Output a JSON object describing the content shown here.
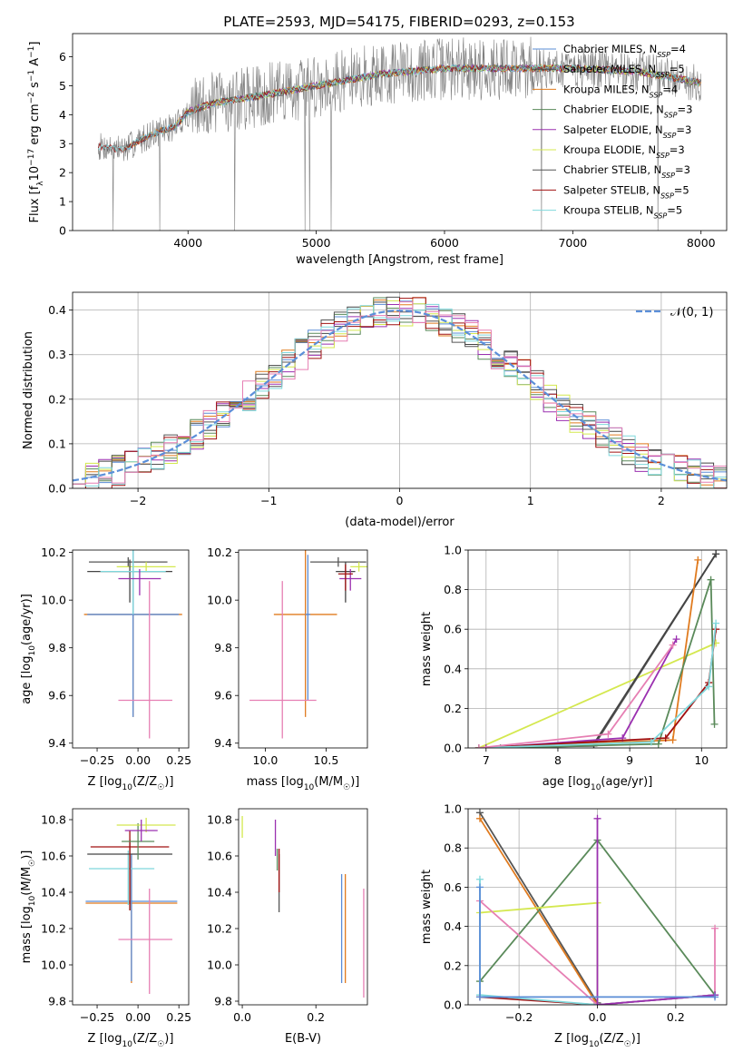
{
  "title": "PLATE=2593, MJD=54175, FIBERID=0293, z=0.153",
  "colors": {
    "Chabrier MILES": "#5a8cd6",
    "Salpeter MILES": "#444444",
    "Kroupa MILES": "#e07b1f",
    "Chabrier ELODIE": "#5a8a5a",
    "Salpeter ELODIE": "#9b30b0",
    "Kroupa ELODIE": "#d4e84f",
    "Chabrier STELIB": "#555555",
    "Salpeter STELIB": "#a01010",
    "Kroupa STELIB": "#7fd8dc",
    "pink": "#e67fb3",
    "data": "#808080",
    "normal": "#5b8fd9"
  },
  "chart_data": [
    {
      "type": "line",
      "panel": "spectrum",
      "xlabel": "wavelength [Angstrom, rest frame]",
      "ylabel_parts": [
        "Flux [f",
        "λ",
        "10",
        "−17",
        " erg cm",
        "−2",
        " s",
        "−1",
        " A",
        "−1",
        "]"
      ],
      "xlim": [
        3100,
        8200
      ],
      "ylim": [
        0,
        6.8
      ],
      "xticks": [
        4000,
        5000,
        6000,
        7000,
        8000
      ],
      "yticks": [
        0,
        1,
        2,
        3,
        4,
        5,
        6
      ],
      "legend_placement": "right",
      "legend": [
        {
          "label": "Chabrier MILES, N",
          "sub": "SSP",
          "tail": "=4"
        },
        {
          "label": "Salpeter MILES, N",
          "sub": "SSP",
          "tail": "=5"
        },
        {
          "label": "Kroupa MILES, N",
          "sub": "SSP",
          "tail": "=4"
        },
        {
          "label": "Chabrier ELODIE, N",
          "sub": "SSP",
          "tail": "=3"
        },
        {
          "label": "Salpeter ELODIE, N",
          "sub": "SSP",
          "tail": "=3"
        },
        {
          "label": "Kroupa ELODIE, N",
          "sub": "SSP",
          "tail": "=3"
        },
        {
          "label": "Chabrier STELIB, N",
          "sub": "SSP",
          "tail": "=3"
        },
        {
          "label": "Salpeter STELIB, N",
          "sub": "SSP",
          "tail": "=5"
        },
        {
          "label": "Kroupa STELIB, N",
          "sub": "SSP",
          "tail": "=5"
        }
      ],
      "continuum": {
        "x": [
          3300,
          3500,
          3700,
          3900,
          4000,
          4200,
          4500,
          5000,
          5500,
          6000,
          6500,
          7000,
          7500,
          8000
        ],
        "y": [
          2.9,
          2.8,
          3.3,
          3.6,
          4.1,
          4.4,
          4.6,
          5.0,
          5.4,
          5.6,
          5.6,
          5.6,
          5.5,
          5.1
        ]
      }
    },
    {
      "type": "line",
      "panel": "residual-histogram",
      "xlabel": "(data-model)/error",
      "ylabel": "Normed distribution",
      "xlim": [
        -2.5,
        2.5
      ],
      "ylim": [
        0,
        0.44
      ],
      "xticks": [
        -2,
        -1,
        0,
        1,
        2
      ],
      "xticklabels": [
        "−2",
        "−1",
        "0",
        "1",
        "2"
      ],
      "yticks": [
        0,
        0.1,
        0.2,
        0.3,
        0.4
      ],
      "yticklabels": [
        "0.0",
        "0.1",
        "0.2",
        "0.3",
        "0.4"
      ],
      "legend_label": "𝒩(0, 1)",
      "grid": true,
      "bin_width": 0.1
    },
    {
      "type": "scatter",
      "panel": "age-vs-Z",
      "xlabel_parts": [
        "Z [log",
        "10",
        "(Z/Z",
        "☉",
        ")]"
      ],
      "ylabel_parts": [
        "age  [log",
        "10",
        "(age/yr)]"
      ],
      "xlim": [
        -0.4,
        0.31
      ],
      "ylim": [
        9.38,
        10.21
      ],
      "xticks": [
        -0.25,
        0,
        0.25
      ],
      "xticklabels": [
        "−0.25",
        "0.00",
        "0.25"
      ],
      "yticks": [
        9.4,
        9.6,
        9.8,
        10.0,
        10.2
      ],
      "yticklabels": [
        "9.4",
        "9.6",
        "9.8",
        "10.0",
        "10.2"
      ],
      "points": [
        {
          "c": "Kroupa MILES",
          "x": -0.03,
          "xe": 0.3,
          "y": 9.94,
          "ye": [
            0.43,
            0.27
          ]
        },
        {
          "c": "Chabrier MILES",
          "x": -0.03,
          "xe": 0.28,
          "y": 9.94,
          "ye": [
            0.43,
            0.27
          ]
        },
        {
          "c": "pink",
          "x": 0.07,
          "xe": [
            0.19,
            0.14
          ],
          "y": 9.58,
          "ye": [
            0.16,
            0.5
          ]
        },
        {
          "c": "Chabrier STELIB",
          "x": -0.06,
          "xe": 0.24,
          "y": 10.16,
          "ye": 0.02
        },
        {
          "c": "Kroupa ELODIE",
          "x": 0.05,
          "xe": 0.18,
          "y": 10.14,
          "ye": [
            0.02,
            0.02
          ]
        },
        {
          "c": "Salpeter MILES",
          "x": -0.05,
          "xe": 0.26,
          "y": 10.12,
          "ye": [
            0.13,
            0.05
          ]
        },
        {
          "c": "Kroupa STELIB",
          "x": -0.03,
          "xe": 0.2,
          "y": 10.12,
          "ye": 0.18
        },
        {
          "c": "Salpeter ELODIE",
          "x": 0.01,
          "xe": 0.13,
          "y": 10.09,
          "ye": [
            0.07,
            0.04
          ]
        }
      ]
    },
    {
      "type": "scatter",
      "panel": "age-vs-mass",
      "xlabel_parts": [
        "mass [log",
        "10",
        "(M/M",
        "☉",
        ")]"
      ],
      "ylabel": "",
      "xlim": [
        9.78,
        10.84
      ],
      "ylim": [
        9.38,
        10.21
      ],
      "xticks": [
        10.0,
        10.5
      ],
      "xticklabels": [
        "10.0",
        "10.5"
      ],
      "yticks": [
        9.4,
        9.6,
        9.8,
        10.0,
        10.2
      ],
      "yticklabels": [
        "9.4",
        "9.6",
        "9.8",
        "10.0",
        "10.2"
      ],
      "points": [
        {
          "c": "Kroupa MILES",
          "x": 10.33,
          "xe": 0.26,
          "y": 9.94,
          "ye": [
            0.43,
            0.27
          ]
        },
        {
          "c": "Chabrier MILES",
          "x": 10.35,
          "xe": 0.02,
          "y": 9.94,
          "ye": [
            0.36,
            0.25
          ]
        },
        {
          "c": "pink",
          "x": 10.14,
          "xe": [
            0.27,
            0.28
          ],
          "y": 9.58,
          "ye": [
            0.16,
            0.5
          ]
        },
        {
          "c": "Chabrier STELIB",
          "x": 10.6,
          "xe": 0.23,
          "y": 10.16,
          "ye": 0.02
        },
        {
          "c": "Kroupa ELODIE",
          "x": 10.77,
          "xe": 0.07,
          "y": 10.14,
          "ye": 0.02
        },
        {
          "c": "Salpeter MILES",
          "x": 10.66,
          "xe": 0.08,
          "y": 10.12,
          "ye": [
            0.13,
            0.04
          ]
        },
        {
          "c": "Salpeter ELODIE",
          "x": 10.7,
          "xe": 0.09,
          "y": 10.09,
          "ye": [
            0.05,
            0.04
          ]
        },
        {
          "c": "Salpeter STELIB",
          "x": 10.66,
          "xe": 0.06,
          "y": 10.11,
          "ye": [
            0.07,
            0.04
          ]
        }
      ]
    },
    {
      "type": "line",
      "panel": "mass-weight-vs-age",
      "xlabel_parts": [
        "age  [log",
        "10",
        "(age/yr)]"
      ],
      "ylabel": "mass weight",
      "xlim": [
        6.75,
        10.35
      ],
      "ylim": [
        0,
        1.0
      ],
      "xticks": [
        7,
        8,
        9,
        10
      ],
      "xticklabels": [
        "7",
        "8",
        "9",
        "10"
      ],
      "yticks": [
        0,
        0.2,
        0.4,
        0.6,
        0.8,
        1.0
      ],
      "yticklabels": [
        "0.0",
        "0.2",
        "0.4",
        "0.6",
        "0.8",
        "1.0"
      ],
      "grid": true,
      "series": [
        {
          "c": "Kroupa ELODIE",
          "x": [
            6.9,
            10.2
          ],
          "y": [
            0.0,
            0.53
          ]
        },
        {
          "c": "Chabrier STELIB",
          "x": [
            6.9,
            8.5,
            10.2
          ],
          "y": [
            0.0,
            0.01,
            0.98
          ]
        },
        {
          "c": "Salpeter MILES",
          "x": [
            6.9,
            8.5,
            10.2
          ],
          "y": [
            0.0,
            0.02,
            0.98
          ]
        },
        {
          "c": "Kroupa MILES",
          "x": [
            6.9,
            9.6,
            9.95
          ],
          "y": [
            0.0,
            0.04,
            0.95
          ]
        },
        {
          "c": "Salpeter ELODIE",
          "x": [
            7.0,
            8.9,
            9.65
          ],
          "y": [
            0.0,
            0.05,
            0.55
          ]
        },
        {
          "c": "Chabrier ELODIE",
          "x": [
            7.2,
            9.4,
            10.13,
            10.18
          ],
          "y": [
            0.0,
            0.02,
            0.85,
            0.12
          ]
        },
        {
          "c": "Salpeter STELIB",
          "x": [
            6.9,
            9.5,
            10.1,
            10.2
          ],
          "y": [
            0.0,
            0.05,
            0.33,
            0.6
          ]
        },
        {
          "c": "Kroupa STELIB",
          "x": [
            6.9,
            9.3,
            10.1,
            10.2
          ],
          "y": [
            0.0,
            0.03,
            0.31,
            0.63
          ]
        },
        {
          "c": "pink",
          "x": [
            6.9,
            8.7,
            9.6
          ],
          "y": [
            0.0,
            0.07,
            0.52
          ]
        }
      ]
    },
    {
      "type": "scatter",
      "panel": "mass-vs-Z",
      "xlabel_parts": [
        "Z [log",
        "10",
        "(Z/Z",
        "☉",
        ")]"
      ],
      "ylabel_parts": [
        "mass [log",
        "10",
        "(M/M",
        "☉",
        ")]"
      ],
      "xlim": [
        -0.4,
        0.31
      ],
      "ylim": [
        9.78,
        10.86
      ],
      "xticks": [
        -0.25,
        0,
        0.25
      ],
      "xticklabels": [
        "−0.25",
        "0.00",
        "0.25"
      ],
      "yticks": [
        9.8,
        10.0,
        10.2,
        10.4,
        10.6,
        10.8
      ],
      "yticklabels": [
        "9.8",
        "10.0",
        "10.2",
        "10.4",
        "10.6",
        "10.8"
      ],
      "points": [
        {
          "c": "Kroupa MILES",
          "x": -0.04,
          "xe": 0.28,
          "y": 10.34,
          "ye": [
            0.44,
            0.26
          ]
        },
        {
          "c": "Chabrier MILES",
          "x": -0.04,
          "xe": 0.28,
          "y": 10.35,
          "ye": [
            0.44,
            0.26
          ]
        },
        {
          "c": "pink",
          "x": 0.07,
          "xe": [
            0.19,
            0.14
          ],
          "y": 10.14,
          "ye": [
            0.3,
            0.28
          ]
        },
        {
          "c": "Kroupa STELIB",
          "x": -0.06,
          "xe": [
            0.24,
            0.16
          ],
          "y": 10.53,
          "ye": [
            0.2,
            0.1
          ]
        },
        {
          "c": "Salpeter MILES",
          "x": -0.05,
          "xe": 0.26,
          "y": 10.61,
          "ye": [
            0.31,
            0.08
          ]
        },
        {
          "c": "Salpeter STELIB",
          "x": -0.05,
          "xe": 0.24,
          "y": 10.65,
          "ye": [
            0.35,
            0.09
          ]
        },
        {
          "c": "Chabrier ELODIE",
          "x": 0.0,
          "xe": 0.1,
          "y": 10.68,
          "ye": 0.1
        },
        {
          "c": "Kroupa ELODIE",
          "x": 0.05,
          "xe": 0.18,
          "y": 10.77,
          "ye": 0.04
        },
        {
          "c": "Salpeter ELODIE",
          "x": 0.02,
          "xe": 0.1,
          "y": 10.74,
          "ye": 0.06
        }
      ]
    },
    {
      "type": "scatter",
      "panel": "mass-vs-EBV",
      "xlabel": "E(B-V)",
      "ylabel": "",
      "xlim": [
        -0.01,
        0.34
      ],
      "ylim": [
        9.78,
        10.86
      ],
      "xticks": [
        0.0,
        0.2
      ],
      "xticklabels": [
        "0.0",
        "0.2"
      ],
      "yticks": [
        9.8,
        10.0,
        10.2,
        10.4,
        10.6,
        10.8
      ],
      "yticklabels": [
        "9.8",
        "10.0",
        "10.2",
        "10.4",
        "10.6",
        "10.8"
      ],
      "points": [
        {
          "c": "Kroupa ELODIE",
          "x": 0.0,
          "y": 10.76,
          "ye": 0.06
        },
        {
          "c": "Salpeter ELODIE",
          "x": 0.09,
          "y": 10.7,
          "ye": 0.1
        },
        {
          "c": "Chabrier ELODIE",
          "x": 0.095,
          "y": 10.58,
          "ye": 0.06
        },
        {
          "c": "Chabrier STELIB",
          "x": 0.1,
          "y": 10.45,
          "ye": 0.16
        },
        {
          "c": "Salpeter STELIB",
          "x": 0.1,
          "y": 10.52,
          "ye": 0.12
        },
        {
          "c": "Chabrier MILES",
          "x": 0.27,
          "y": 10.2,
          "ye": 0.3
        },
        {
          "c": "Kroupa MILES",
          "x": 0.28,
          "y": 10.2,
          "ye": 0.3
        },
        {
          "c": "pink",
          "x": 0.33,
          "y": 10.12,
          "ye": 0.3
        }
      ]
    },
    {
      "type": "line",
      "panel": "mass-weight-vs-Z",
      "xlabel_parts": [
        "Z [log",
        "10",
        "(Z/Z",
        "☉",
        ")]"
      ],
      "ylabel": "mass weight",
      "xlim": [
        -0.33,
        0.33
      ],
      "ylim": [
        0,
        1.0
      ],
      "xticks": [
        -0.2,
        0.0,
        0.2
      ],
      "xticklabels": [
        "−0.2",
        "0.0",
        "0.2"
      ],
      "yticks": [
        0,
        0.2,
        0.4,
        0.6,
        0.8,
        1.0
      ],
      "yticklabels": [
        "0.0",
        "0.2",
        "0.4",
        "0.6",
        "0.8",
        "1.0"
      ],
      "grid": true,
      "series": [
        {
          "c": "Chabrier STELIB",
          "x": [
            -0.3,
            0.0
          ],
          "y": [
            0.98,
            0.01
          ]
        },
        {
          "c": "Kroupa MILES",
          "x": [
            -0.3,
            0.0
          ],
          "y": [
            0.95,
            0.0
          ]
        },
        {
          "c": "Chabrier ELODIE",
          "x": [
            -0.3,
            0.0,
            0.3
          ],
          "y": [
            0.12,
            0.84,
            0.05
          ]
        },
        {
          "c": "Kroupa ELODIE",
          "x": [
            -0.3,
            0.0,
            0.0
          ],
          "y": [
            0.47,
            0.52,
            0.0
          ]
        },
        {
          "c": "pink",
          "x": [
            -0.3,
            0.0,
            0.3,
            0.3
          ],
          "y": [
            0.53,
            0.0,
            0.05,
            0.39
          ]
        },
        {
          "c": "Salpeter STELIB",
          "x": [
            -0.3,
            0.0,
            0.3
          ],
          "y": [
            0.04,
            0.0,
            0.05
          ]
        },
        {
          "c": "Kroupa STELIB",
          "x": [
            -0.3,
            -0.3,
            0.0,
            0.3
          ],
          "y": [
            0.64,
            0.05,
            0.0,
            0.05
          ]
        },
        {
          "c": "Salpeter ELODIE",
          "x": [
            0.0,
            0.0,
            0.3
          ],
          "y": [
            0.95,
            0.0,
            0.05
          ]
        },
        {
          "c": "Chabrier MILES",
          "x": [
            -0.3,
            -0.3,
            0.3
          ],
          "y": [
            0.6,
            0.04,
            0.04
          ]
        }
      ]
    }
  ]
}
